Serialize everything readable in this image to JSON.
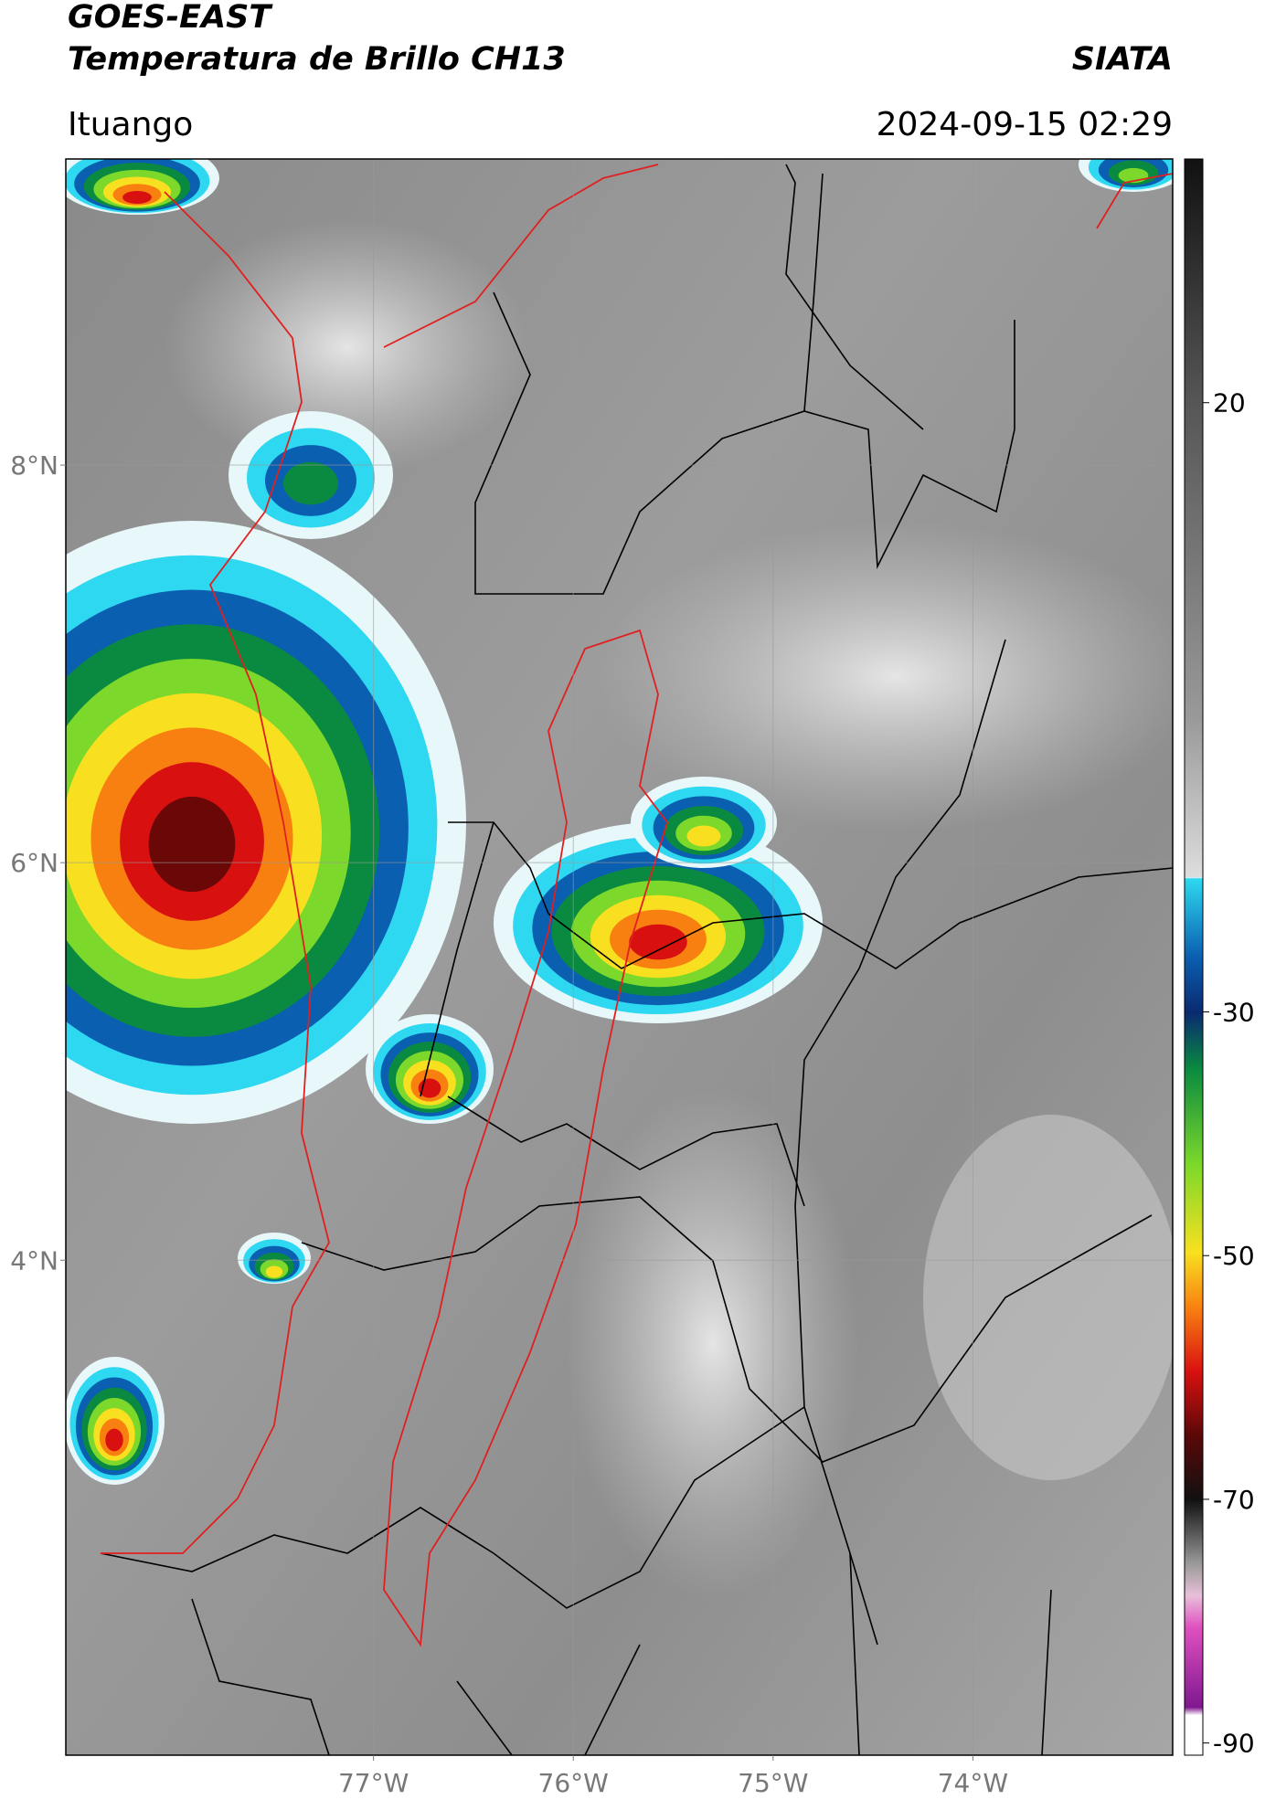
{
  "header": {
    "title": "GOES-EAST",
    "subtitle": "Temperatura de Brillo CH13",
    "source": "SIATA",
    "location": "Ituango",
    "datetime": "2024-09-15 02:29"
  },
  "map": {
    "xlim": [
      -78.54,
      -73.0
    ],
    "ylim": [
      1.51,
      9.54
    ],
    "xticks": [
      {
        "value": -77,
        "label": "77°W"
      },
      {
        "value": -76,
        "label": "76°W"
      },
      {
        "value": -75,
        "label": "75°W"
      },
      {
        "value": -74,
        "label": "74°W"
      }
    ],
    "yticks": [
      {
        "value": 8,
        "label": "8°N"
      },
      {
        "value": 6,
        "label": "6°N"
      },
      {
        "value": 4,
        "label": "4°N"
      }
    ],
    "grid": true
  },
  "colorbar": {
    "lim": [
      -91,
      40
    ],
    "ticks": [
      20,
      -30,
      -50,
      -70,
      -90
    ]
  }
}
